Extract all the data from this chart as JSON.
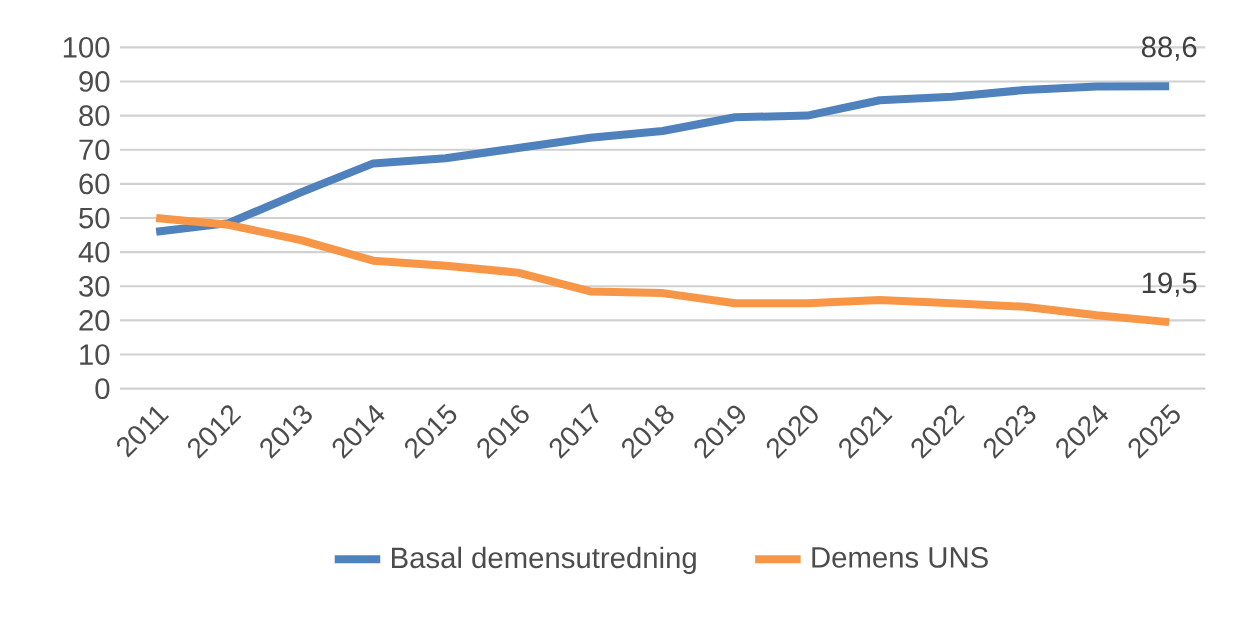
{
  "chart_data": {
    "type": "line",
    "categories": [
      "2011",
      "2012",
      "2013",
      "2014",
      "2015",
      "2016",
      "2017",
      "2018",
      "2019",
      "2020",
      "2021",
      "2022",
      "2023",
      "2024",
      "2025"
    ],
    "series": [
      {
        "name": "Basal demensutredning",
        "color": "#4f81bd",
        "values": [
          46,
          48.5,
          57.5,
          66,
          67.5,
          70.5,
          73.5,
          75.5,
          79.5,
          80,
          84.5,
          85.5,
          87.5,
          88.5,
          88.6
        ],
        "value_labels": [
          null,
          null,
          null,
          null,
          null,
          null,
          null,
          null,
          null,
          null,
          null,
          null,
          null,
          null,
          "88,6"
        ]
      },
      {
        "name": "Demens UNS",
        "color": "#f79646",
        "values": [
          50,
          48,
          43.5,
          37.5,
          36,
          34,
          28.5,
          28,
          25,
          25,
          26,
          25,
          24,
          21.5,
          19.5
        ],
        "value_labels": [
          null,
          null,
          null,
          null,
          null,
          null,
          null,
          null,
          null,
          null,
          null,
          null,
          null,
          null,
          "19,5"
        ]
      }
    ],
    "ylim": [
      0,
      100
    ],
    "yticks": [
      0,
      10,
      20,
      30,
      40,
      50,
      60,
      70,
      80,
      90,
      100
    ],
    "grid": "y",
    "legend": "bottom",
    "marker": "none",
    "line_style": "solid"
  }
}
